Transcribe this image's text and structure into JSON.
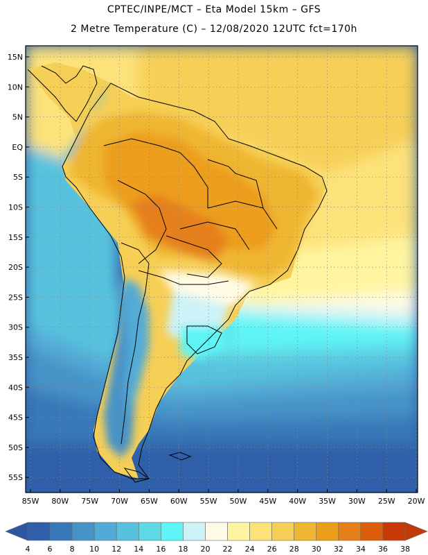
{
  "header": {
    "line1": "CPTEC/INPE/MCT –  Eta Model 15km – GFS",
    "line2": "2 Metre Temperature (C) – 12/08/2020 12UTC fct=170h"
  },
  "lat_ticks": [
    "15N",
    "10N",
    "5N",
    "EQ",
    "5S",
    "10S",
    "15S",
    "20S",
    "25S",
    "30S",
    "35S",
    "40S",
    "45S",
    "50S",
    "55S"
  ],
  "lon_ticks": [
    "85W",
    "80W",
    "75W",
    "70W",
    "65W",
    "60W",
    "55W",
    "50W",
    "45W",
    "40W",
    "35W",
    "30W",
    "25W",
    "20W"
  ],
  "colorbar": {
    "labels": [
      "4",
      "6",
      "8",
      "10",
      "12",
      "14",
      "16",
      "18",
      "20",
      "22",
      "24",
      "26",
      "28",
      "30",
      "32",
      "34",
      "36",
      "38"
    ],
    "colors": [
      "#2f5fa8",
      "#3978b8",
      "#4793c8",
      "#52abd6",
      "#58c2de",
      "#5fd8e6",
      "#5ff4f6",
      "#cdf3f8",
      "#fffbe6",
      "#fff5a0",
      "#fde27a",
      "#f6cf56",
      "#efb633",
      "#ec9e1a",
      "#e6801a",
      "#dc5d0c",
      "#c73a06"
    ],
    "low_color": "#2c57a0",
    "high_color": "#c13a0a"
  }
}
